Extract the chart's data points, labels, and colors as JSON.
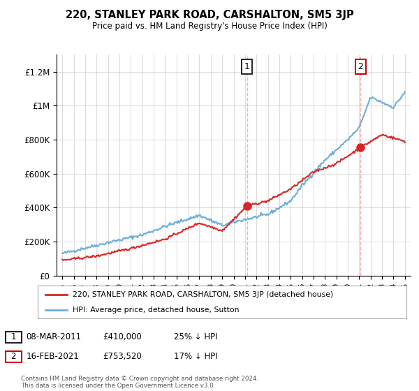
{
  "title": "220, STANLEY PARK ROAD, CARSHALTON, SM5 3JP",
  "subtitle": "Price paid vs. HM Land Registry's House Price Index (HPI)",
  "ylabel_ticks": [
    "£0",
    "£200K",
    "£400K",
    "£600K",
    "£800K",
    "£1M",
    "£1.2M"
  ],
  "ytick_values": [
    0,
    200000,
    400000,
    600000,
    800000,
    1000000,
    1200000
  ],
  "ylim": [
    0,
    1300000
  ],
  "xlim_start": 1995,
  "xlim_end": 2025,
  "xtick_years": [
    1995,
    1996,
    1997,
    1998,
    1999,
    2000,
    2001,
    2002,
    2003,
    2004,
    2005,
    2006,
    2007,
    2008,
    2009,
    2010,
    2011,
    2012,
    2013,
    2014,
    2015,
    2016,
    2017,
    2018,
    2019,
    2020,
    2021,
    2022,
    2023,
    2024,
    2025
  ],
  "hpi_color": "#6baed6",
  "price_color": "#d62728",
  "vline_color": "#ffaaaa",
  "annotation_1_year": 2011.18,
  "annotation_1_value": 410000,
  "annotation_2_year": 2021.12,
  "annotation_2_value": 753520,
  "legend_line1": "220, STANLEY PARK ROAD, CARSHALTON, SM5 3JP (detached house)",
  "legend_line2": "HPI: Average price, detached house, Sutton",
  "table_row1": [
    "1",
    "08-MAR-2011",
    "£410,000",
    "25% ↓ HPI"
  ],
  "table_row2": [
    "2",
    "16-FEB-2021",
    "£753,520",
    "17% ↓ HPI"
  ],
  "footer": "Contains HM Land Registry data © Crown copyright and database right 2024.\nThis data is licensed under the Open Government Licence v3.0.",
  "background_color": "#ffffff",
  "grid_color": "#cccccc"
}
